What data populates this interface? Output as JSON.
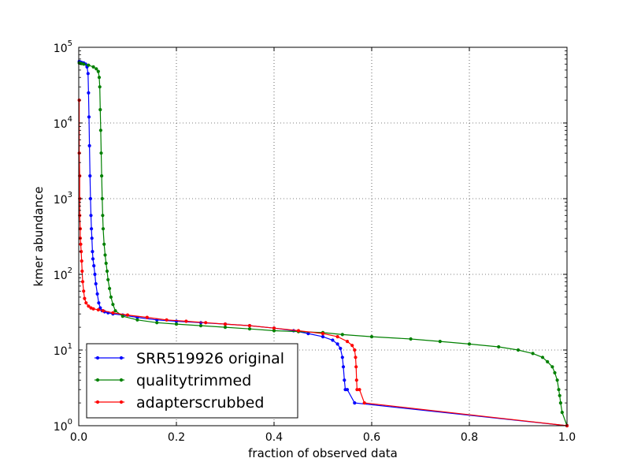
{
  "chart_data": {
    "type": "line",
    "title": "",
    "xlabel": "fraction of observed data",
    "ylabel": "kmer abundance",
    "xlim": [
      0.0,
      1.0
    ],
    "ylim": [
      1,
      100000
    ],
    "yscale": "log",
    "grid": true,
    "legend_position": "lower-left",
    "x_ticks": [
      "0.0",
      "0.2",
      "0.4",
      "0.6",
      "0.8",
      "1.0"
    ],
    "y_ticks": [
      {
        "base": "10",
        "exp": "0"
      },
      {
        "base": "10",
        "exp": "1"
      },
      {
        "base": "10",
        "exp": "2"
      },
      {
        "base": "10",
        "exp": "3"
      },
      {
        "base": "10",
        "exp": "4"
      },
      {
        "base": "10",
        "exp": "5"
      }
    ],
    "series": [
      {
        "name": "SRR519926 original",
        "color": "#0000ff",
        "x": [
          0.001,
          0.003,
          0.006,
          0.01,
          0.014,
          0.017,
          0.019,
          0.02,
          0.021,
          0.022,
          0.023,
          0.024,
          0.025,
          0.026,
          0.027,
          0.028,
          0.029,
          0.031,
          0.033,
          0.035,
          0.038,
          0.041,
          0.044,
          0.048,
          0.053,
          0.06,
          0.07,
          0.09,
          0.12,
          0.16,
          0.2,
          0.25,
          0.3,
          0.35,
          0.4,
          0.44,
          0.47,
          0.5,
          0.52,
          0.53,
          0.536,
          0.54,
          0.542,
          0.544,
          0.546,
          0.55,
          0.565,
          1.0
        ],
        "y": [
          65000,
          64000,
          63000,
          62000,
          60000,
          55000,
          45000,
          25000,
          12000,
          5000,
          2000,
          1000,
          600,
          400,
          300,
          200,
          160,
          130,
          100,
          75,
          55,
          42,
          36,
          33,
          32,
          31,
          30,
          29,
          27,
          25,
          24,
          23,
          22,
          21,
          19.5,
          18,
          16.5,
          15,
          13.5,
          12,
          10.5,
          8,
          6,
          4,
          3,
          3,
          2,
          1
        ]
      },
      {
        "name": "qualitytrimmed",
        "color": "#008000",
        "x": [
          0.001,
          0.005,
          0.01,
          0.02,
          0.03,
          0.036,
          0.04,
          0.042,
          0.043,
          0.044,
          0.045,
          0.046,
          0.047,
          0.048,
          0.049,
          0.05,
          0.052,
          0.054,
          0.056,
          0.058,
          0.06,
          0.063,
          0.066,
          0.07,
          0.075,
          0.09,
          0.12,
          0.16,
          0.2,
          0.25,
          0.3,
          0.35,
          0.4,
          0.45,
          0.5,
          0.54,
          0.6,
          0.68,
          0.74,
          0.8,
          0.86,
          0.9,
          0.93,
          0.95,
          0.96,
          0.97,
          0.975,
          0.98,
          0.983,
          0.985,
          0.987,
          0.99,
          1.0
        ],
        "y": [
          62000,
          61000,
          60000,
          58000,
          55000,
          52000,
          48000,
          40000,
          30000,
          15000,
          8000,
          4000,
          2000,
          1000,
          600,
          400,
          250,
          180,
          140,
          110,
          85,
          65,
          50,
          40,
          33,
          28,
          25,
          23,
          22,
          21,
          20,
          19,
          18,
          17.5,
          17,
          16,
          15,
          14,
          13,
          12,
          11,
          10,
          9,
          8,
          7,
          6,
          5,
          4,
          3,
          2.5,
          2,
          1.5,
          1
        ]
      },
      {
        "name": "adapterscrubbed",
        "color": "#ff0000",
        "x": [
          0.001,
          0.001,
          0.002,
          0.002,
          0.002,
          0.003,
          0.003,
          0.004,
          0.005,
          0.006,
          0.007,
          0.008,
          0.01,
          0.012,
          0.015,
          0.02,
          0.025,
          0.03,
          0.04,
          0.05,
          0.07,
          0.1,
          0.14,
          0.18,
          0.22,
          0.26,
          0.3,
          0.35,
          0.4,
          0.45,
          0.5,
          0.53,
          0.55,
          0.56,
          0.565,
          0.567,
          0.568,
          0.569,
          0.57,
          0.575,
          0.585,
          1.0
        ],
        "y": [
          20000,
          4000,
          2000,
          1000,
          600,
          400,
          300,
          250,
          200,
          150,
          110,
          80,
          60,
          48,
          42,
          38,
          36,
          35,
          34,
          33,
          31,
          29,
          27,
          25,
          24,
          23,
          22,
          21,
          19.5,
          18,
          16.5,
          15,
          13,
          11.5,
          10,
          8,
          6,
          4,
          3,
          3,
          2,
          1
        ]
      }
    ]
  }
}
